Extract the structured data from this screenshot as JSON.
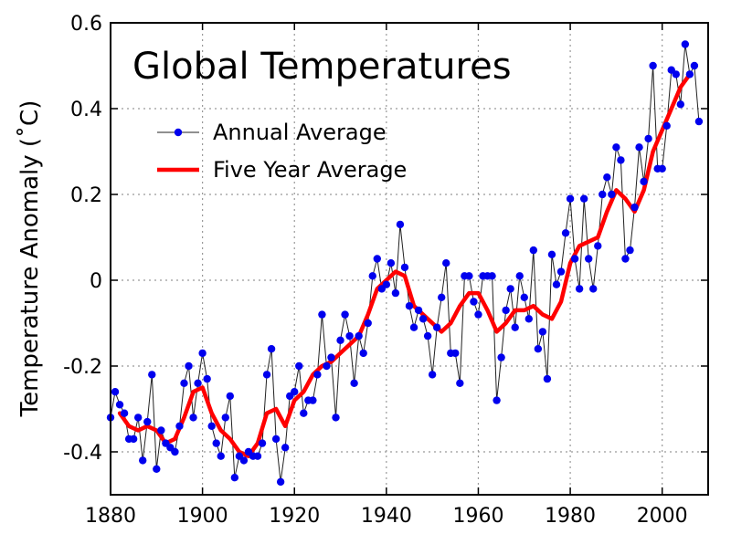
{
  "chart_data": {
    "type": "line",
    "title": "Global Temperatures",
    "xlabel": "",
    "ylabel": "Temperature Anomaly (˚C)",
    "xlim": [
      1880,
      2010
    ],
    "ylim": [
      -0.5,
      0.6
    ],
    "xticks": [
      1880,
      1900,
      1920,
      1940,
      1960,
      1980,
      2000
    ],
    "yticks": [
      -0.4,
      -0.2,
      0,
      0.2,
      0.4,
      0.6
    ],
    "ytick_labels": [
      "-0.4",
      "-0.2",
      "0",
      "0.2",
      "0.4",
      "0.6"
    ],
    "grid": true,
    "legend_position": "upper-left",
    "series": [
      {
        "name": "Annual Average",
        "color": "#0000ee",
        "style": "line-with-markers",
        "x": [
          1880,
          1881,
          1882,
          1883,
          1884,
          1885,
          1886,
          1887,
          1888,
          1889,
          1890,
          1891,
          1892,
          1893,
          1894,
          1895,
          1896,
          1897,
          1898,
          1899,
          1900,
          1901,
          1902,
          1903,
          1904,
          1905,
          1906,
          1907,
          1908,
          1909,
          1910,
          1911,
          1912,
          1913,
          1914,
          1915,
          1916,
          1917,
          1918,
          1919,
          1920,
          1921,
          1922,
          1923,
          1924,
          1925,
          1926,
          1927,
          1928,
          1929,
          1930,
          1931,
          1932,
          1933,
          1934,
          1935,
          1936,
          1937,
          1938,
          1939,
          1940,
          1941,
          1942,
          1943,
          1944,
          1945,
          1946,
          1947,
          1948,
          1949,
          1950,
          1951,
          1952,
          1953,
          1954,
          1955,
          1956,
          1957,
          1958,
          1959,
          1960,
          1961,
          1962,
          1963,
          1964,
          1965,
          1966,
          1967,
          1968,
          1969,
          1970,
          1971,
          1972,
          1973,
          1974,
          1975,
          1976,
          1977,
          1978,
          1979,
          1980,
          1981,
          1982,
          1983,
          1984,
          1985,
          1986,
          1987,
          1988,
          1989,
          1990,
          1991,
          1992,
          1993,
          1994,
          1995,
          1996,
          1997,
          1998,
          1999,
          2000,
          2001,
          2002,
          2003,
          2004,
          2005,
          2006,
          2007,
          2008
        ],
        "values": [
          -0.32,
          -0.26,
          -0.29,
          -0.31,
          -0.37,
          -0.37,
          -0.32,
          -0.42,
          -0.33,
          -0.22,
          -0.44,
          -0.35,
          -0.38,
          -0.39,
          -0.4,
          -0.34,
          -0.24,
          -0.2,
          -0.32,
          -0.24,
          -0.17,
          -0.23,
          -0.34,
          -0.38,
          -0.41,
          -0.32,
          -0.27,
          -0.46,
          -0.41,
          -0.42,
          -0.4,
          -0.41,
          -0.41,
          -0.38,
          -0.22,
          -0.16,
          -0.37,
          -0.47,
          -0.39,
          -0.27,
          -0.26,
          -0.2,
          -0.31,
          -0.28,
          -0.28,
          -0.22,
          -0.08,
          -0.2,
          -0.18,
          -0.32,
          -0.14,
          -0.08,
          -0.13,
          -0.24,
          -0.13,
          -0.17,
          -0.1,
          0.01,
          0.05,
          -0.02,
          -0.01,
          0.04,
          -0.03,
          0.13,
          0.03,
          -0.06,
          -0.11,
          -0.07,
          -0.09,
          -0.13,
          -0.22,
          -0.11,
          -0.04,
          0.04,
          -0.17,
          -0.17,
          -0.24,
          0.01,
          0.01,
          -0.05,
          -0.08,
          0.01,
          0.01,
          0.01,
          -0.28,
          -0.18,
          -0.07,
          -0.02,
          -0.11,
          0.01,
          -0.04,
          -0.09,
          0.07,
          -0.16,
          -0.12,
          -0.23,
          0.06,
          -0.01,
          0.02,
          0.11,
          0.19,
          0.05,
          -0.02,
          0.19,
          0.05,
          -0.02,
          0.08,
          0.2,
          0.24,
          0.2,
          0.31,
          0.28,
          0.05,
          0.07,
          0.17,
          0.31,
          0.23,
          0.33,
          0.5,
          0.26,
          0.26,
          0.36,
          0.49,
          0.48,
          0.41,
          0.55,
          0.48,
          0.5,
          0.37
        ]
      },
      {
        "name": "Five Year Average",
        "color": "#ff0000",
        "style": "line",
        "x": [
          1882,
          1884,
          1886,
          1888,
          1890,
          1892,
          1894,
          1896,
          1898,
          1900,
          1902,
          1904,
          1906,
          1908,
          1910,
          1912,
          1914,
          1916,
          1918,
          1920,
          1922,
          1924,
          1926,
          1928,
          1930,
          1932,
          1934,
          1936,
          1938,
          1940,
          1942,
          1944,
          1946,
          1948,
          1950,
          1952,
          1954,
          1956,
          1958,
          1960,
          1962,
          1964,
          1966,
          1968,
          1970,
          1972,
          1974,
          1976,
          1978,
          1980,
          1982,
          1984,
          1986,
          1988,
          1990,
          1992,
          1994,
          1996,
          1998,
          2000,
          2002,
          2004,
          2006
        ],
        "values": [
          -0.31,
          -0.34,
          -0.35,
          -0.34,
          -0.35,
          -0.38,
          -0.37,
          -0.32,
          -0.26,
          -0.25,
          -0.31,
          -0.35,
          -0.37,
          -0.4,
          -0.41,
          -0.38,
          -0.31,
          -0.3,
          -0.34,
          -0.28,
          -0.26,
          -0.22,
          -0.2,
          -0.19,
          -0.17,
          -0.15,
          -0.13,
          -0.08,
          -0.02,
          0.0,
          0.02,
          0.01,
          -0.06,
          -0.08,
          -0.1,
          -0.12,
          -0.1,
          -0.06,
          -0.03,
          -0.03,
          -0.07,
          -0.12,
          -0.1,
          -0.07,
          -0.07,
          -0.06,
          -0.08,
          -0.09,
          -0.05,
          0.04,
          0.08,
          0.09,
          0.1,
          0.16,
          0.21,
          0.19,
          0.16,
          0.21,
          0.3,
          0.35,
          0.4,
          0.45,
          0.48
        ]
      }
    ]
  }
}
